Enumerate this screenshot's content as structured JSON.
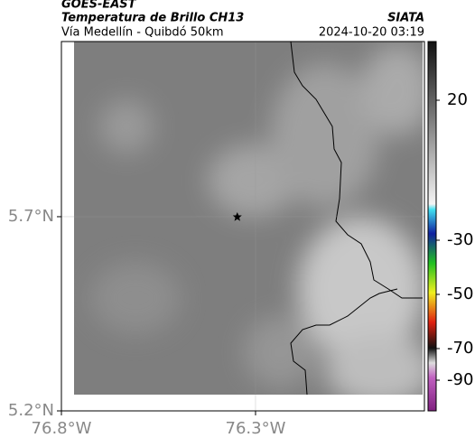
{
  "header": {
    "title": "GOES-EAST",
    "subtitle": "Temperatura de Brillo CH13",
    "route": "Vía Medellín - Quibdó 50km",
    "source": "SIATA",
    "datetime": "2024-10-20 03:19"
  },
  "map": {
    "xlim": [
      -76.8,
      -75.865
    ],
    "ylim": [
      5.2,
      6.151
    ],
    "xticks": [
      {
        "value": -76.8,
        "label": "76.8°W"
      },
      {
        "value": -76.3,
        "label": "76.3°W"
      }
    ],
    "yticks": [
      {
        "value": 5.2,
        "label": "5.2°N"
      },
      {
        "value": 5.7,
        "label": "5.7°N"
      }
    ],
    "grid": true,
    "marker": {
      "lon": -76.347,
      "lat": 5.7
    }
  },
  "colorbar": {
    "ticks": [
      20,
      -30,
      -50,
      -70,
      -90
    ]
  }
}
